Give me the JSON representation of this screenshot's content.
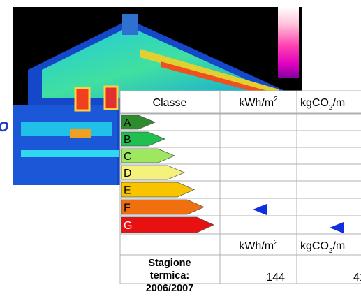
{
  "thermal_image": {
    "label_fragment": "o"
  },
  "table": {
    "header": {
      "classe": "Classe",
      "kwh": "kWh/m",
      "kwh_sup": "2",
      "co2": "kgCO",
      "co2_sub": "2",
      "co2_rest": "/m"
    },
    "classes": [
      "A",
      "B",
      "C",
      "D",
      "E",
      "F",
      "G"
    ],
    "units_row": {
      "kwh": "kWh/m",
      "kwh_sup": "2",
      "co2": "kgCO",
      "co2_sub": "2",
      "co2_rest": "/m"
    },
    "data_row": {
      "label_lines": [
        "Stagione",
        "termica:",
        "2006/2007"
      ],
      "kwh": 144,
      "co2": 41
    }
  }
}
